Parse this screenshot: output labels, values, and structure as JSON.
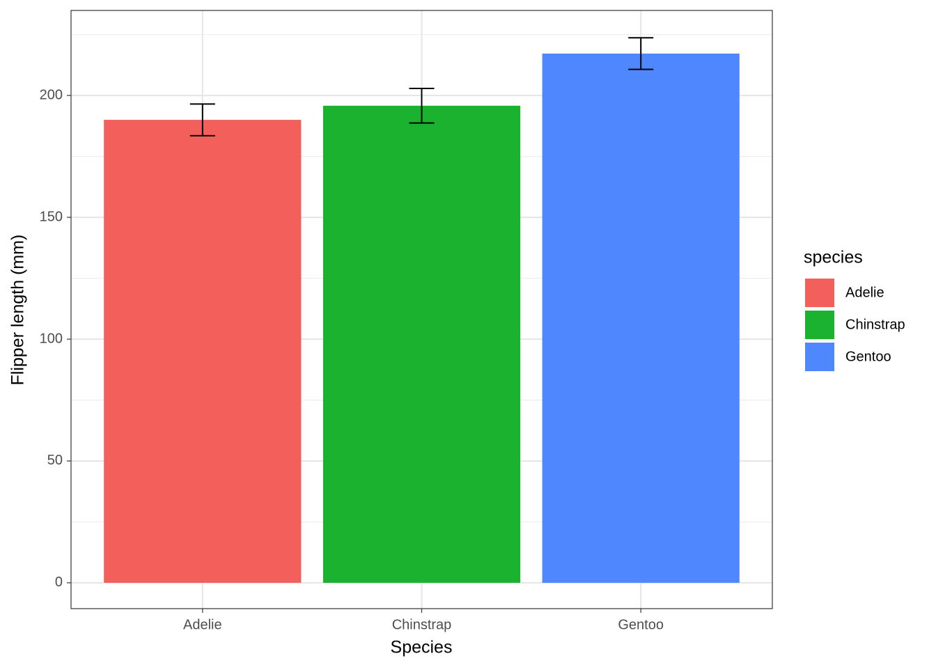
{
  "chart_data": {
    "type": "bar",
    "x_label": "Species",
    "y_label": "Flipper length (mm)",
    "categories": [
      "Adelie",
      "Chinstrap",
      "Gentoo"
    ],
    "values": [
      190,
      195.8,
      217.2
    ],
    "errors": [
      6.5,
      7.1,
      6.5
    ],
    "colors": [
      "#f35f5b",
      "#1bb22f",
      "#4f87ff"
    ],
    "legend_title": "species",
    "ylim": [
      -10.6,
      234.9
    ],
    "yticks": [
      0,
      50,
      100,
      150,
      200
    ],
    "yminor": [
      25,
      75,
      125,
      175,
      225
    ],
    "grid": true
  }
}
